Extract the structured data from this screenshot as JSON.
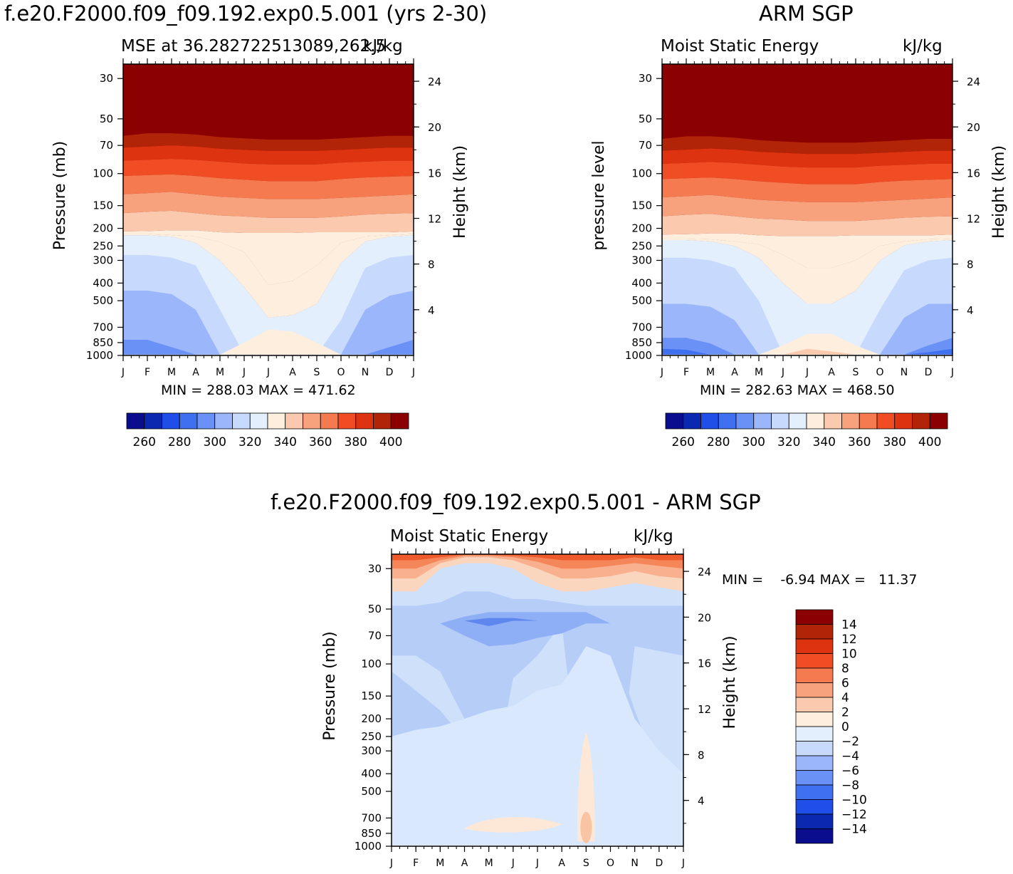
{
  "page": {
    "left_title": "f.e20.F2000.f09_f09.192.exp0.5.001 (yrs 2-30)",
    "right_title": "ARM SGP",
    "bottom_title": "f.e20.F2000.f09_f09.192.exp0.5.001 - ARM SGP"
  },
  "colors": {
    "mse_palette": [
      "#0a0d8e",
      "#0b28b0",
      "#1f4ee8",
      "#3f70f0",
      "#6a91f5",
      "#9bb6fa",
      "#c7d9fc",
      "#e3effd",
      "#fdeede",
      "#fbc9ad",
      "#f7a17d",
      "#f57a4f",
      "#f04d24",
      "#dd3311",
      "#b22407",
      "#8b0000"
    ],
    "diff_palette": [
      "#0a0d8e",
      "#0b28b0",
      "#1f4ee8",
      "#3f70f0",
      "#6a91f5",
      "#9bb6fa",
      "#c7d9fc",
      "#e3effd",
      "#fdeede",
      "#fbc9ad",
      "#f7a17d",
      "#f57a4f",
      "#f04d24",
      "#dd3311",
      "#b22407",
      "#8b0000"
    ]
  },
  "chart_data": [
    {
      "id": "model",
      "type": "heatmap",
      "title": "MSE at 36.282722513089,262.5",
      "units": "kJ/kg",
      "xlabel": "",
      "ylabel": "Pressure (mb)",
      "y2label": "Height (km)",
      "x": [
        "J",
        "F",
        "M",
        "A",
        "M",
        "J",
        "J",
        "A",
        "S",
        "O",
        "N",
        "D",
        "J"
      ],
      "y_ticks": [
        30,
        50,
        70,
        100,
        150,
        200,
        250,
        300,
        400,
        500,
        700,
        850,
        1000
      ],
      "y2_ticks": [
        4,
        8,
        12,
        16,
        20,
        24
      ],
      "ylim": [
        25,
        1000
      ],
      "y_scale": "log",
      "min_label": "MIN = 288.03 MAX = 471.62",
      "levels": [
        250,
        260,
        270,
        280,
        290,
        300,
        310,
        320,
        330,
        340,
        350,
        360,
        370,
        380,
        390,
        400
      ],
      "level_labels": [
        "260",
        "280",
        "300",
        "320",
        "340",
        "360",
        "380",
        "400"
      ],
      "contours": [
        {
          "value": 415,
          "p": [
            62,
            60,
            60,
            61,
            63,
            64,
            65,
            65,
            65,
            64,
            63,
            62,
            62
          ]
        },
        {
          "value": 400,
          "p": [
            72,
            71,
            70,
            71,
            73,
            74,
            75,
            75,
            75,
            74,
            73,
            72,
            72
          ]
        },
        {
          "value": 390,
          "p": [
            85,
            84,
            83,
            84,
            86,
            88,
            89,
            89,
            89,
            87,
            86,
            85,
            85
          ]
        },
        {
          "value": 380,
          "p": [
            103,
            102,
            101,
            103,
            106,
            108,
            110,
            110,
            110,
            107,
            105,
            104,
            103
          ]
        },
        {
          "value": 370,
          "p": [
            130,
            128,
            126,
            130,
            134,
            136,
            138,
            138,
            138,
            136,
            134,
            132,
            130
          ]
        },
        {
          "value": 360,
          "p": [
            165,
            162,
            160,
            165,
            170,
            172,
            175,
            175,
            175,
            172,
            168,
            166,
            165
          ]
        },
        {
          "value": 345,
          "p": [
            208,
            207,
            205,
            205,
            210,
            212,
            212,
            212,
            210,
            210,
            210,
            210,
            208
          ]
        }
      ]
    },
    {
      "id": "obs",
      "type": "heatmap",
      "title": "Moist Static Energy",
      "units": "kJ/kg",
      "xlabel": "",
      "ylabel": "pressure level",
      "y2label": "Height (km)",
      "x": [
        "J",
        "F",
        "M",
        "A",
        "M",
        "J",
        "J",
        "A",
        "S",
        "O",
        "N",
        "D",
        "J"
      ],
      "y_ticks": [
        30,
        50,
        70,
        100,
        150,
        200,
        250,
        300,
        400,
        500,
        700,
        850,
        1000
      ],
      "y2_ticks": [
        4,
        8,
        12,
        16,
        20,
        24
      ],
      "ylim": [
        25,
        1000
      ],
      "y_scale": "log",
      "min_label": "MIN = 282.63 MAX = 468.50",
      "levels": [
        250,
        260,
        270,
        280,
        290,
        300,
        310,
        320,
        330,
        340,
        350,
        360,
        370,
        380,
        390,
        400
      ],
      "level_labels": [
        "260",
        "280",
        "300",
        "320",
        "340",
        "360",
        "380",
        "400"
      ]
    },
    {
      "id": "diff",
      "type": "heatmap",
      "title": "Moist Static Energy",
      "units": "kJ/kg",
      "xlabel": "",
      "ylabel": "Pressure (mb)",
      "y2label": "Height (km)",
      "x": [
        "J",
        "F",
        "M",
        "A",
        "M",
        "J",
        "J",
        "A",
        "S",
        "O",
        "N",
        "D",
        "J"
      ],
      "y_ticks": [
        30,
        50,
        70,
        100,
        150,
        200,
        250,
        300,
        400,
        500,
        700,
        850,
        1000
      ],
      "y2_ticks": [
        4,
        8,
        12,
        16,
        20,
        24
      ],
      "ylim": [
        25,
        1000
      ],
      "y_scale": "log",
      "min_label": "MIN =    -6.94 MAX =   11.37",
      "levels": [
        -14,
        -12,
        -10,
        -8,
        -6,
        -4,
        -2,
        0,
        2,
        4,
        6,
        8,
        10,
        12,
        14
      ],
      "level_labels": [
        "14",
        "12",
        "10",
        "8",
        "6",
        "4",
        "2",
        "0",
        "−2",
        "−4",
        "−6",
        "−8",
        "−10",
        "−12",
        "−14"
      ]
    }
  ]
}
